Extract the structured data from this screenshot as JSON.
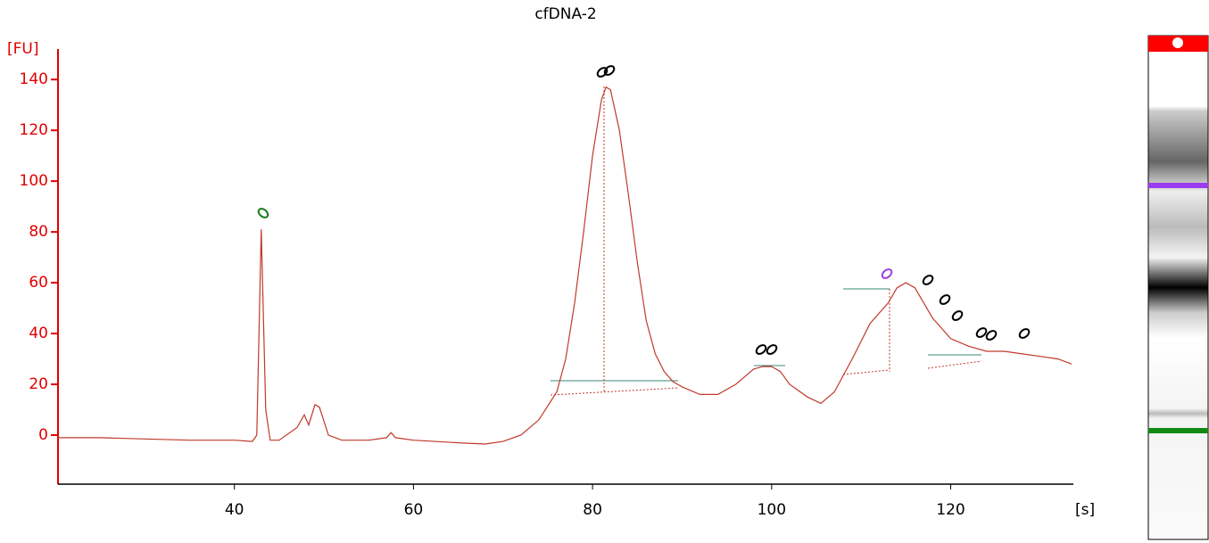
{
  "chart_data": {
    "type": "line",
    "title": "cfDNA-2",
    "y_label": "[FU]",
    "x_label": "[s]",
    "color": "#c0392b",
    "axis_color": "#e00000",
    "xlim": [
      20.3,
      133.7
    ],
    "ylim": [
      -19.3,
      152
    ],
    "xticks": [
      40,
      60,
      80,
      100,
      120
    ],
    "yticks": [
      0,
      20,
      40,
      60,
      80,
      100,
      120,
      140
    ],
    "x": [
      20.3,
      25,
      30,
      35,
      40,
      42,
      42.5,
      43,
      43.5,
      44,
      45,
      47,
      47.8,
      48.3,
      49,
      49.5,
      50.5,
      52,
      55,
      57,
      57.5,
      58,
      60,
      65,
      68,
      70,
      72,
      74,
      76,
      77,
      78,
      79,
      80,
      81,
      81.5,
      82,
      83,
      84,
      85,
      86,
      87,
      88,
      89,
      90,
      92,
      94,
      96,
      98,
      99,
      100,
      101,
      102,
      104,
      105.5,
      107,
      109,
      111,
      113,
      114,
      115,
      116,
      117,
      118,
      119,
      120,
      122,
      124,
      126,
      128,
      130,
      132,
      133.5
    ],
    "values": [
      -1,
      -1,
      -1.5,
      -2,
      -2,
      -2.5,
      0,
      81,
      10,
      -2,
      -2,
      3,
      8,
      4,
      12,
      11,
      0,
      -2,
      -2,
      -1,
      1,
      -1,
      -2,
      -3,
      -3.5,
      -2.5,
      0,
      6,
      17,
      30,
      52,
      80,
      110,
      132,
      137,
      136,
      120,
      95,
      68,
      45,
      32,
      25,
      21,
      19,
      16,
      16,
      20,
      26,
      27,
      27,
      25,
      20,
      15,
      12.5,
      17,
      30,
      44,
      52,
      58,
      60,
      58,
      52,
      46,
      42,
      38,
      35,
      33,
      33,
      32,
      31,
      30,
      28
    ]
  }
}
